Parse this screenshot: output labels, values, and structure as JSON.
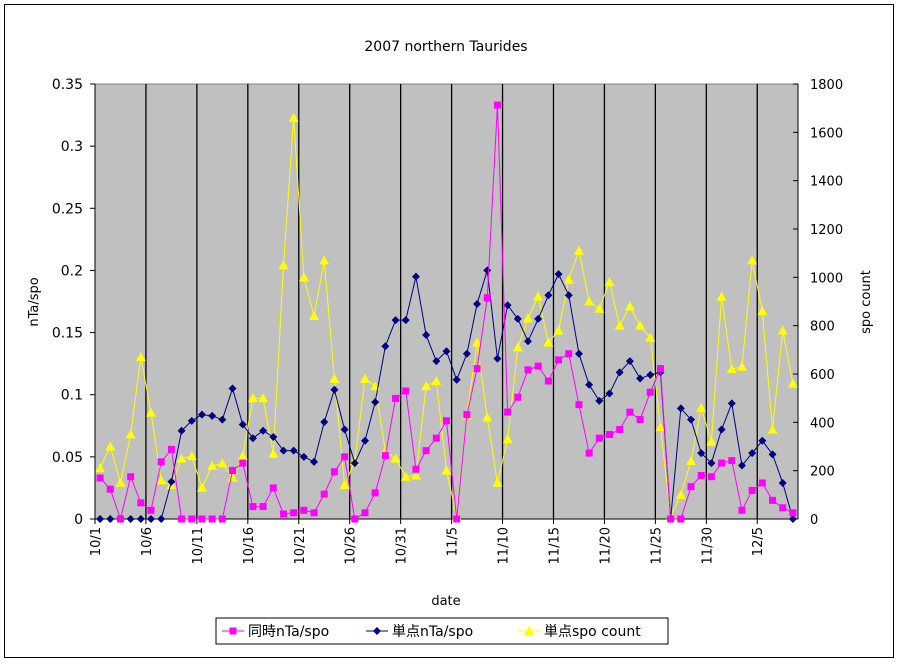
{
  "chart_data": {
    "type": "line",
    "title": "2007 northern Taurides",
    "xlabel": "date",
    "ylabel": "nTa/spo",
    "y2label": "spo count",
    "ylim": [
      0,
      0.35
    ],
    "yticks": [
      "0",
      "0.05",
      "0.1",
      "0.15",
      "0.2",
      "0.25",
      "0.3",
      "0.35"
    ],
    "y2lim": [
      0,
      1800
    ],
    "y2ticks": [
      "0",
      "200",
      "400",
      "600",
      "800",
      "1000",
      "1200",
      "1400",
      "1600",
      "1800"
    ],
    "xticks": [
      "10/1",
      "10/6",
      "10/11",
      "10/16",
      "10/21",
      "10/26",
      "10/31",
      "11/5",
      "11/10",
      "11/15",
      "11/20",
      "11/25",
      "11/30",
      "12/5"
    ],
    "grid": "vertical",
    "legend_placement": "bottom",
    "plot_background": "#c0c0c0",
    "x": [
      "10/1",
      "10/2",
      "10/3",
      "10/4",
      "10/5",
      "10/6",
      "10/7",
      "10/8",
      "10/9",
      "10/10",
      "10/11",
      "10/12",
      "10/13",
      "10/14",
      "10/15",
      "10/16",
      "10/17",
      "10/18",
      "10/19",
      "10/20",
      "10/21",
      "10/22",
      "10/23",
      "10/24",
      "10/25",
      "10/26",
      "10/27",
      "10/28",
      "10/29",
      "10/30",
      "10/31",
      "11/1",
      "11/2",
      "11/3",
      "11/4",
      "11/5",
      "11/6",
      "11/7",
      "11/8",
      "11/9",
      "11/10",
      "11/11",
      "11/12",
      "11/13",
      "11/14",
      "11/15",
      "11/16",
      "11/17",
      "11/18",
      "11/19",
      "11/20",
      "11/21",
      "11/22",
      "11/23",
      "11/24",
      "11/25",
      "11/26",
      "11/27",
      "11/28",
      "11/29",
      "11/30",
      "12/1",
      "12/2",
      "12/3",
      "12/4",
      "12/5",
      "12/6",
      "12/7",
      "12/8"
    ],
    "series": [
      {
        "name": "同時nTa/spo",
        "axis": "left",
        "color": "#ff00ff",
        "marker": "square",
        "values": [
          0.033,
          0.024,
          0.0,
          0.034,
          0.013,
          0.007,
          0.046,
          0.056,
          0,
          0,
          0,
          0,
          0,
          0.039,
          0.045,
          0.01,
          0.01,
          0.025,
          0.004,
          0.005,
          0.007,
          0.005,
          0.02,
          0.038,
          0.05,
          0.0,
          0.005,
          0.021,
          0.051,
          0.097,
          0.103,
          0.04,
          0.055,
          0.065,
          0.079,
          0.0,
          0.084,
          0.121,
          0.178,
          0.333,
          0.086,
          0.098,
          0.12,
          0.123,
          0.111,
          0.128,
          0.133,
          0.092,
          0.053,
          0.065,
          0.068,
          0.072,
          0.086,
          0.08,
          0.102,
          0.121,
          0.0,
          0.0,
          0.026,
          0.035,
          0.034,
          0.045,
          0.047,
          0.007,
          0.023,
          0.029,
          0.015,
          0.009,
          0.005
        ]
      },
      {
        "name": "単点nTa/spo",
        "axis": "left",
        "color": "#000080",
        "marker": "diamond",
        "values": [
          0,
          0,
          0,
          0,
          0,
          0,
          0,
          0.03,
          0.071,
          0.079,
          0.084,
          0.083,
          0.08,
          0.105,
          0.076,
          0.065,
          0.071,
          0.066,
          0.055,
          0.055,
          0.05,
          0.046,
          0.078,
          0.104,
          0.072,
          0.045,
          0.063,
          0.094,
          0.139,
          0.16,
          0.16,
          0.195,
          0.148,
          0.127,
          0.135,
          0.112,
          0.133,
          0.173,
          0.2,
          0.129,
          0.172,
          0.161,
          0.143,
          0.161,
          0.18,
          0.197,
          0.18,
          0.133,
          0.108,
          0.095,
          0.101,
          0.118,
          0.127,
          0.113,
          0.116,
          0.118,
          0.0,
          0.089,
          0.08,
          0.053,
          0.045,
          0.072,
          0.093,
          0.043,
          0.053,
          0.063,
          0.052,
          0.029,
          0.0
        ]
      },
      {
        "name": "単点spo count",
        "axis": "right",
        "color": "#ffff00",
        "marker": "triangle",
        "values": [
          210,
          300,
          150,
          350,
          670,
          440,
          160,
          140,
          250,
          260,
          130,
          220,
          230,
          170,
          260,
          500,
          500,
          270,
          1050,
          1660,
          1000,
          840,
          1070,
          580,
          140,
          240,
          580,
          550,
          280,
          250,
          175,
          180,
          550,
          570,
          200,
          10,
          430,
          730,
          420,
          150,
          330,
          710,
          830,
          920,
          730,
          780,
          990,
          1110,
          900,
          870,
          980,
          800,
          880,
          800,
          750,
          380,
          10,
          100,
          240,
          460,
          320,
          920,
          620,
          630,
          1070,
          860,
          370,
          780,
          560
        ]
      }
    ]
  }
}
